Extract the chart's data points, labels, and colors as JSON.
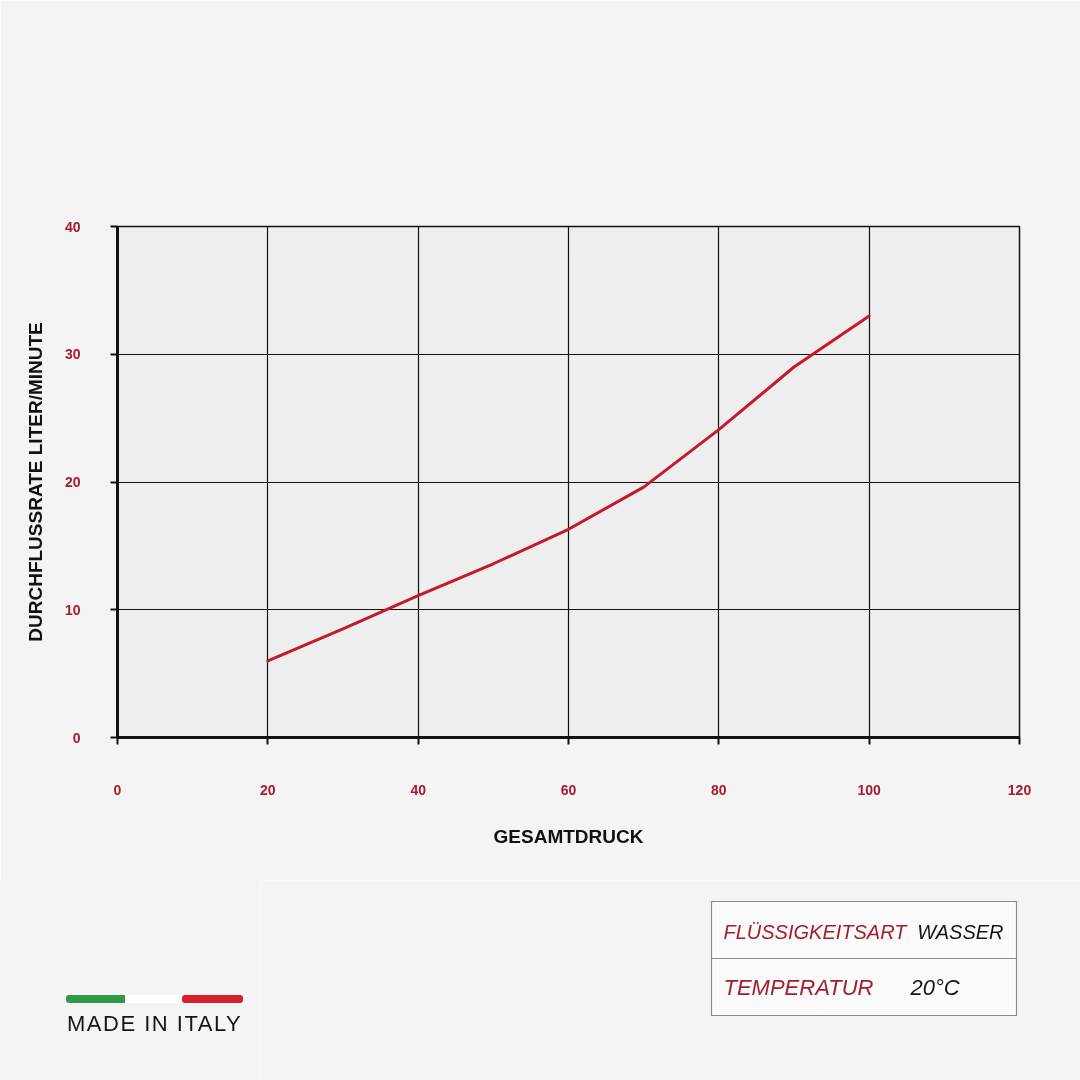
{
  "chart_data": {
    "type": "line",
    "xlabel": "GESAMTDRUCK",
    "ylabel": "DURCHFLUSSRATE LITER/MINUTE",
    "x": [
      20,
      30,
      40,
      50,
      60,
      70,
      80,
      90,
      100
    ],
    "series": [
      {
        "color": "#c41a2e",
        "values": [
          6,
          8.5,
          11.1,
          13.6,
          16.3,
          19.6,
          24.1,
          29,
          33
        ]
      }
    ],
    "xlim": [
      0,
      120
    ],
    "ylim": [
      0,
      40
    ],
    "xticks": [
      0,
      20,
      40,
      60,
      80,
      100,
      120
    ],
    "yticks": [
      0,
      10,
      20,
      30,
      40
    ],
    "grid": true,
    "line_style": "solid",
    "annotations": [
      "FLÜSSIGKEITSART",
      "WASSER",
      "TEMPERATUR",
      "20°C",
      "MADE IN ITALY"
    ]
  }
}
